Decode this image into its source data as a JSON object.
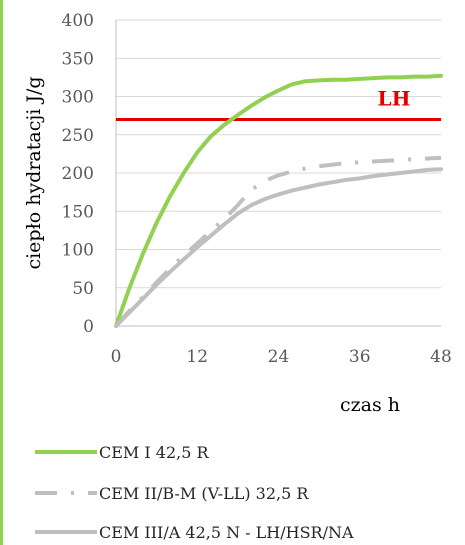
{
  "chart_data": {
    "type": "line",
    "xlabel": "czas h",
    "ylabel": "ciepło hydratacji J/g",
    "xlim": [
      0,
      48
    ],
    "ylim": [
      0,
      400
    ],
    "x_ticks": [
      0,
      12,
      24,
      36,
      48
    ],
    "y_ticks": [
      0,
      50,
      100,
      150,
      200,
      250,
      300,
      350,
      400
    ],
    "grid": "horizontal",
    "legend_position": "bottom",
    "series": [
      {
        "name": "CEM I 42,5 R",
        "color": "#92d050",
        "style": "solid",
        "x": [
          0,
          2,
          4,
          6,
          8,
          10,
          12,
          14,
          16,
          18,
          20,
          22,
          24,
          26,
          28,
          30,
          32,
          34,
          36,
          38,
          40,
          42,
          44,
          46,
          48
        ],
        "y": [
          0,
          50,
          95,
          135,
          170,
          200,
          227,
          248,
          263,
          276,
          288,
          299,
          308,
          316,
          320,
          321,
          322,
          322,
          323,
          324,
          325,
          325,
          326,
          326,
          327
        ]
      },
      {
        "name": "CEM II/B-M (V-LL) 32,5 R",
        "color": "#bfbfbf",
        "style": "dash-dot",
        "x": [
          0,
          2,
          4,
          6,
          8,
          10,
          12,
          14,
          16,
          18,
          20,
          22,
          24,
          26,
          28,
          30,
          32,
          34,
          36,
          38,
          40,
          42,
          44,
          46,
          48
        ],
        "y": [
          0,
          20,
          38,
          57,
          75,
          92,
          108,
          124,
          140,
          158,
          178,
          190,
          197,
          202,
          206,
          209,
          211,
          213,
          214,
          215,
          216,
          217,
          218,
          219,
          220
        ]
      },
      {
        "name": "CEM III/A 42,5 N - LH/HSR/NA",
        "color": "#bfbfbf",
        "style": "solid",
        "x": [
          0,
          2,
          4,
          6,
          8,
          10,
          12,
          14,
          16,
          18,
          20,
          22,
          24,
          26,
          28,
          30,
          32,
          34,
          36,
          38,
          40,
          42,
          44,
          46,
          48
        ],
        "y": [
          0,
          18,
          36,
          54,
          71,
          87,
          103,
          118,
          133,
          147,
          158,
          166,
          172,
          177,
          181,
          185,
          188,
          191,
          193,
          196,
          198,
          200,
          202,
          204,
          205
        ]
      }
    ],
    "reference_line": {
      "label": "LH",
      "y": 270,
      "color": "#e00000"
    }
  }
}
